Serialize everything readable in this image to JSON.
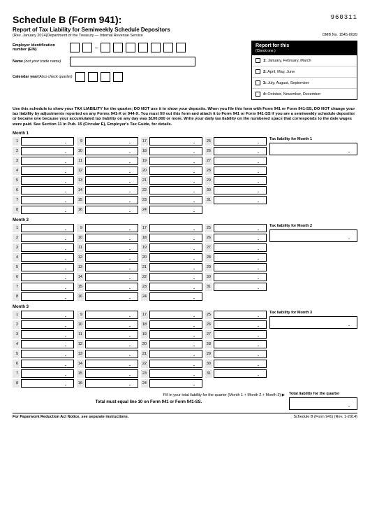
{
  "header": {
    "title": "Schedule B (Form 941):",
    "form_number": "960311",
    "subtitle": "Report of Tax Liability for Semiweekly Schedule Depositors",
    "revision": "(Rev. January 2014)Department of the Treasury — Internal Revenue Service",
    "omb": "OMB No. 1545-0029"
  },
  "ein": {
    "label": "Employer identification number (EIN)"
  },
  "name": {
    "label": "Name ",
    "italic": "(not your trade name)"
  },
  "calendar": {
    "label": "Calendar year",
    "italic": "(Also check quarter)"
  },
  "report": {
    "head": "Report for this",
    "sub": "(Check one.)",
    "opts": [
      {
        "n": "1:",
        "t": "January, February, March"
      },
      {
        "n": "2:",
        "t": "April, May, June"
      },
      {
        "n": "3:",
        "t": "July, August, September"
      },
      {
        "n": "4:",
        "t": "October, November, December"
      }
    ]
  },
  "instructions": "Use this schedule to show your TAX LIABILITY for the quarter; DO NOT use it to show your deposits. When you file this form with Form 941 or Form 941-SS, DO NOT change your tax liability by adjustments reported on any Forms 941-X or 944-X. You must fill out this form and attach it to Form 941 or Form 941-SS if you are a semiweekly schedule depositor or became one because your accumulated tax liability on any day was $100,000 or more. Write your daily tax liability on the numbered space that corresponds to the date wages were paid. See Section 11 in Pub. 15 (Circular E), Employer's Tax Guide, for details.",
  "months": [
    {
      "label": "Month 1",
      "total_label": "Tax liability for Month 1"
    },
    {
      "label": "Month 2",
      "total_label": "Tax liability for Month 2"
    },
    {
      "label": "Month 3",
      "total_label": "Tax liability for Month 3"
    }
  ],
  "day_cols": [
    [
      1,
      2,
      3,
      4,
      5,
      6,
      7,
      8
    ],
    [
      9,
      10,
      11,
      12,
      13,
      14,
      15,
      16
    ],
    [
      17,
      18,
      19,
      20,
      21,
      22,
      23,
      24
    ],
    [
      25,
      26,
      27,
      28,
      29,
      30,
      31
    ]
  ],
  "fill": {
    "line1": "Fill in your total liability for the quarter (Month 1 + Month 2 + Month 3) ▶",
    "line2": "Total must equal line 10 on Form 941 or Form 941-SS.",
    "quarter_label": "Total liability for the quarter"
  },
  "footer": {
    "left": "For Paperwork Reduction Act Notice, see separate instructions.",
    "mid": "Schedule B (Form 941) ",
    "rev": "(Rev. 1-2014)"
  }
}
